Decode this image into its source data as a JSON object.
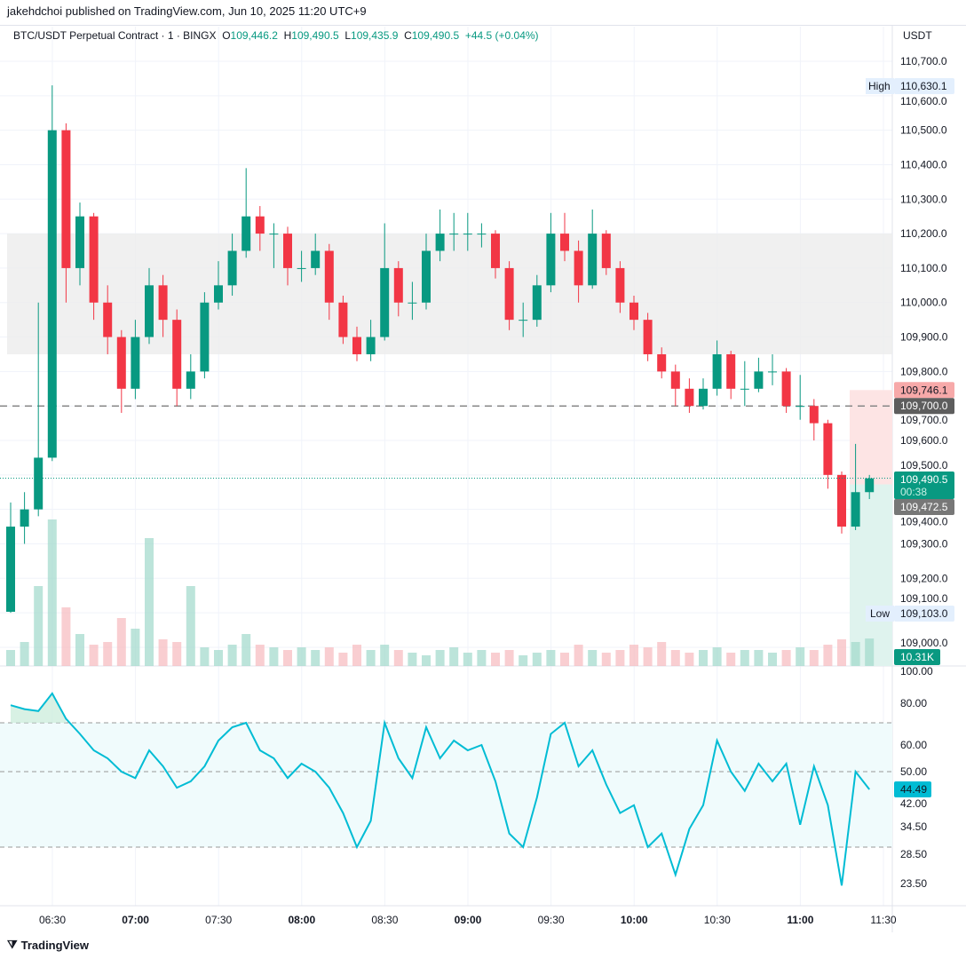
{
  "header": {
    "published": "jakehdchoi published on TradingView.com, Jun 10, 2025 11:20 UTC+9"
  },
  "legend": {
    "symbol": "BTC/USDT Perpetual Contract · 1 · BINGX",
    "o_label": "O",
    "o": "109,446.2",
    "h_label": "H",
    "h": "109,490.5",
    "l_label": "L",
    "l": "109,435.9",
    "c_label": "C",
    "c": "109,490.5",
    "change": "+44.5 (+0.04%)"
  },
  "axis": {
    "currency": "USDT"
  },
  "badges": {
    "high_label": "High",
    "high": "110,630.1",
    "low_label": "Low",
    "low": "109,103.0",
    "stop": "109,746.1",
    "level": "109,700.0",
    "last": "109,490.5",
    "countdown": "00:38",
    "entry": "109,472.5",
    "volume": "10.31K",
    "rsi": "44.49"
  },
  "footer": {
    "brand": "TradingView"
  },
  "colors": {
    "up": "#089981",
    "down": "#f23645",
    "rsi": "#00bcd4"
  },
  "chart_data": [
    {
      "type": "candlestick",
      "title": "BTC/USDT Perpetual Contract · 1 · BINGX",
      "interval_note": "resampled approx 5-min",
      "price_ticks": [
        "110,700.0",
        "110,600.0",
        "110,500.0",
        "110,400.0",
        "110,300.0",
        "110,200.0",
        "110,100.0",
        "110,000.0",
        "109,900.0",
        "109,800.0",
        "109,700.0",
        "109,600.0",
        "109,500.0",
        "109,400.0",
        "109,300.0",
        "109,200.0",
        "109,100.0",
        "109,000.0"
      ],
      "price_tick_values": [
        110700,
        110600,
        110500,
        110400,
        110300,
        110200,
        110100,
        110000,
        109900,
        109800,
        109700,
        109600,
        109500,
        109400,
        109300,
        109200,
        109100,
        109000
      ],
      "time_ticks": [
        "06:30",
        "07:00",
        "07:30",
        "08:00",
        "08:30",
        "09:00",
        "09:30",
        "10:00",
        "10:30",
        "11:00",
        "11:30"
      ],
      "time_tick_bold": [
        false,
        true,
        false,
        true,
        false,
        true,
        false,
        true,
        false,
        true,
        false
      ],
      "start_time": "06:15",
      "step_min": 5,
      "zone": [
        109850,
        110200
      ],
      "dashed_level": 109700,
      "stop_level": 109746.1,
      "entry_level": 109472.5,
      "target_level": 108950,
      "ohlc": [
        [
          109103,
          109420,
          109100,
          109350
        ],
        [
          109350,
          109450,
          109300,
          109400
        ],
        [
          109400,
          110000,
          109380,
          109550
        ],
        [
          109550,
          110630,
          109540,
          110500
        ],
        [
          110500,
          110520,
          110000,
          110100
        ],
        [
          110100,
          110290,
          110050,
          110250
        ],
        [
          110250,
          110260,
          109950,
          110000
        ],
        [
          110000,
          110050,
          109850,
          109900
        ],
        [
          109900,
          109920,
          109680,
          109750
        ],
        [
          109750,
          109950,
          109720,
          109900
        ],
        [
          109900,
          110100,
          109880,
          110050
        ],
        [
          110050,
          110080,
          109900,
          109950
        ],
        [
          109950,
          109980,
          109700,
          109750
        ],
        [
          109750,
          109850,
          109720,
          109800
        ],
        [
          109800,
          110030,
          109780,
          110000
        ],
        [
          110000,
          110120,
          109980,
          110050
        ],
        [
          110050,
          110200,
          110020,
          110150
        ],
        [
          110150,
          110390,
          110130,
          110250
        ],
        [
          110250,
          110280,
          110150,
          110200
        ],
        [
          110200,
          110230,
          110100,
          110200
        ],
        [
          110200,
          110220,
          110050,
          110100
        ],
        [
          110100,
          110150,
          110060,
          110100
        ],
        [
          110100,
          110200,
          110080,
          110150
        ],
        [
          110150,
          110170,
          109950,
          110000
        ],
        [
          110000,
          110020,
          109880,
          109900
        ],
        [
          109900,
          109930,
          109830,
          109850
        ],
        [
          109850,
          109950,
          109830,
          109900
        ],
        [
          109900,
          110230,
          109890,
          110100
        ],
        [
          110100,
          110120,
          109960,
          110000
        ],
        [
          110000,
          110060,
          109950,
          110000
        ],
        [
          110000,
          110200,
          109980,
          110150
        ],
        [
          110150,
          110270,
          110120,
          110200
        ],
        [
          110200,
          110260,
          110150,
          110200
        ],
        [
          110200,
          110260,
          110150,
          110200
        ],
        [
          110200,
          110230,
          110160,
          110200
        ],
        [
          110200,
          110210,
          110070,
          110100
        ],
        [
          110100,
          110120,
          109920,
          109950
        ],
        [
          109950,
          110000,
          109900,
          109950
        ],
        [
          109950,
          110080,
          109930,
          110050
        ],
        [
          110050,
          110260,
          110030,
          110200
        ],
        [
          110200,
          110260,
          110120,
          110150
        ],
        [
          110150,
          110180,
          110000,
          110050
        ],
        [
          110050,
          110270,
          110040,
          110200
        ],
        [
          110200,
          110210,
          110080,
          110100
        ],
        [
          110100,
          110120,
          109970,
          110000
        ],
        [
          110000,
          110020,
          109920,
          109950
        ],
        [
          109950,
          109970,
          109830,
          109850
        ],
        [
          109850,
          109870,
          109780,
          109800
        ],
        [
          109800,
          109820,
          109700,
          109750
        ],
        [
          109750,
          109780,
          109680,
          109700
        ],
        [
          109700,
          109780,
          109690,
          109750
        ],
        [
          109750,
          109890,
          109730,
          109850
        ],
        [
          109850,
          109860,
          109720,
          109750
        ],
        [
          109750,
          109830,
          109700,
          109750
        ],
        [
          109750,
          109840,
          109740,
          109800
        ],
        [
          109800,
          109850,
          109760,
          109800
        ],
        [
          109800,
          109810,
          109680,
          109700
        ],
        [
          109700,
          109790,
          109660,
          109700
        ],
        [
          109700,
          109720,
          109600,
          109650
        ],
        [
          109650,
          109660,
          109460,
          109500
        ],
        [
          109500,
          109510,
          109330,
          109350
        ],
        [
          109350,
          109590,
          109340,
          109450
        ],
        [
          109450,
          109500,
          109430,
          109490
        ]
      ],
      "volume_k": [
        6,
        9,
        30,
        55,
        22,
        12,
        8,
        9,
        18,
        14,
        48,
        10,
        9,
        30,
        7,
        6,
        8,
        12,
        8,
        7,
        6,
        7,
        6,
        7,
        5,
        8,
        6,
        8,
        6,
        5,
        4,
        6,
        7,
        5,
        6,
        5,
        6,
        4,
        5,
        6,
        5,
        8,
        6,
        5,
        6,
        8,
        7,
        9,
        6,
        5,
        6,
        7,
        5,
        6,
        6,
        5,
        6,
        7,
        6,
        8,
        10,
        9,
        10.31
      ]
    },
    {
      "type": "line",
      "title": "RSI",
      "rsi_ticks": [
        "100.00",
        "80.00",
        "60.00",
        "50.00",
        "42.00",
        "34.50",
        "28.50",
        "23.50"
      ],
      "rsi_tick_values": [
        100,
        80,
        60,
        50,
        42,
        34.5,
        28.5,
        23.5
      ],
      "bands": [
        70,
        50,
        30
      ],
      "values": [
        79,
        77,
        76,
        86,
        72,
        65,
        58,
        55,
        50,
        48,
        58,
        52,
        45,
        47,
        52,
        62,
        68,
        70,
        58,
        55,
        48,
        53,
        50,
        45,
        38,
        30,
        36,
        70,
        55,
        48,
        68,
        55,
        62,
        58,
        60,
        47,
        33,
        30,
        42,
        65,
        70,
        52,
        58,
        46,
        38,
        40,
        30,
        33,
        25,
        34,
        40,
        62,
        50,
        44,
        53,
        47,
        53,
        35,
        52,
        40,
        23,
        50,
        44.49
      ]
    }
  ]
}
